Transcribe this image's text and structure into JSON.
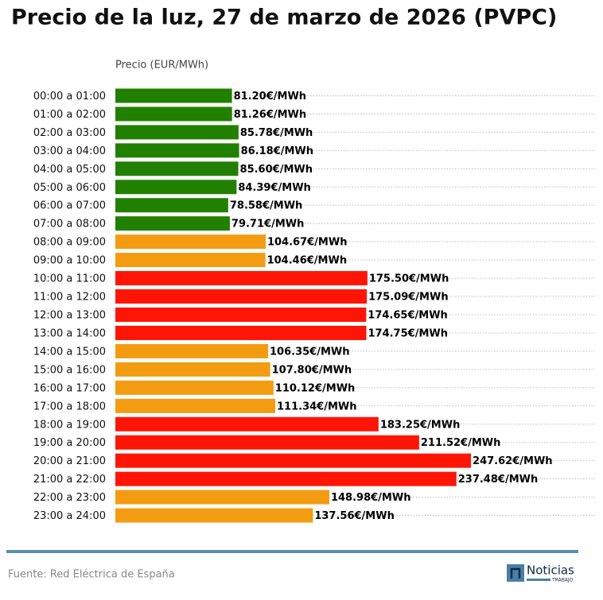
{
  "chart_data": {
    "type": "bar",
    "orientation": "horizontal",
    "title": "Precio de la luz, 27 de marzo de 2026 (PVPC)",
    "axis_label": "Precio (EUR/MWh)",
    "categories": [
      "00:00 a 01:00",
      "01:00 a 02:00",
      "02:00 a 03:00",
      "03:00 a 04:00",
      "04:00 a 05:00",
      "05:00 a 06:00",
      "06:00 a 07:00",
      "07:00 a 08:00",
      "08:00 a 09:00",
      "09:00 a 10:00",
      "10:00 a 11:00",
      "11:00 a 12:00",
      "12:00 a 13:00",
      "13:00 a 14:00",
      "14:00 a 15:00",
      "15:00 a 16:00",
      "16:00 a 17:00",
      "17:00 a 18:00",
      "18:00 a 19:00",
      "19:00 a 20:00",
      "20:00 a 21:00",
      "21:00 a 22:00",
      "22:00 a 23:00",
      "23:00 a 24:00"
    ],
    "values": [
      81.2,
      81.26,
      85.78,
      86.18,
      85.6,
      84.39,
      78.58,
      79.71,
      104.67,
      104.46,
      175.5,
      175.09,
      174.65,
      174.75,
      106.35,
      107.8,
      110.12,
      111.34,
      183.25,
      211.52,
      247.62,
      237.48,
      148.98,
      137.56
    ],
    "value_labels": [
      "81.20€/MWh",
      "81.26€/MWh",
      "85.78€/MWh",
      "86.18€/MWh",
      "85.60€/MWh",
      "84.39€/MWh",
      "78.58€/MWh",
      "79.71€/MWh",
      "104.67€/MWh",
      "104.46€/MWh",
      "175.50€/MWh",
      "175.09€/MWh",
      "174.65€/MWh",
      "174.75€/MWh",
      "106.35€/MWh",
      "107.80€/MWh",
      "110.12€/MWh",
      "111.34€/MWh",
      "183.25€/MWh",
      "211.52€/MWh",
      "247.62€/MWh",
      "237.48€/MWh",
      "148.98€/MWh",
      "137.56€/MWh"
    ],
    "colors": [
      "#218000",
      "#218000",
      "#218000",
      "#218000",
      "#218000",
      "#218000",
      "#218000",
      "#218000",
      "#f39c12",
      "#f39c12",
      "#ff1505",
      "#ff1505",
      "#ff1505",
      "#ff1505",
      "#f39c12",
      "#f39c12",
      "#f39c12",
      "#f39c12",
      "#ff1505",
      "#ff1505",
      "#ff1505",
      "#ff1505",
      "#f39c12",
      "#f39c12"
    ],
    "xlim": [
      0,
      334
    ],
    "grid": true
  },
  "footer": {
    "source": "Fuente: Red Eléctrica de España",
    "logo_text": "Noticias",
    "logo_subtext": "TRABAJO"
  }
}
